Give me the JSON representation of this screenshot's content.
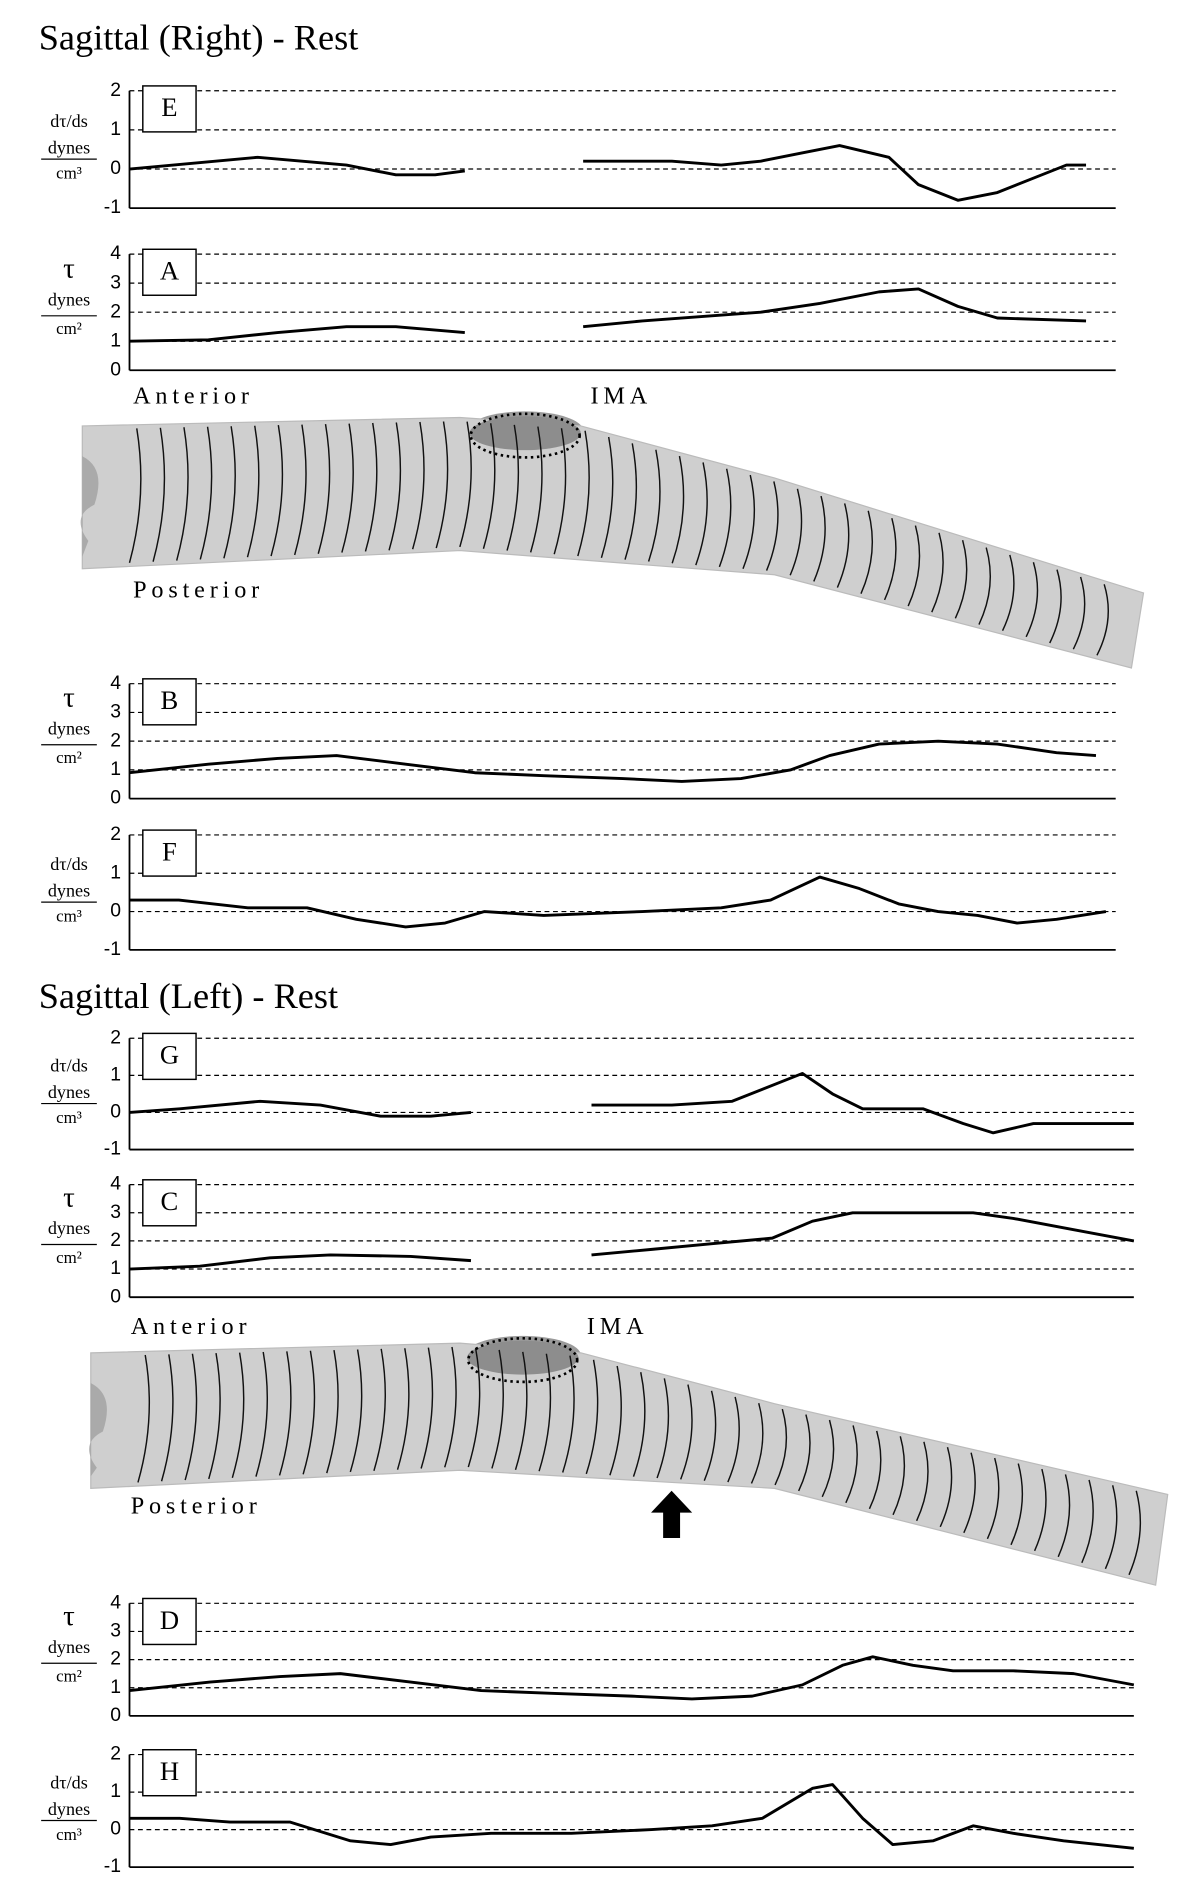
{
  "sections": [
    {
      "title": "Sagittal (Right) - Rest",
      "diagram": {
        "top_label": "Anterior",
        "ima_label": "IMA",
        "bottom_label": "Posterior"
      }
    },
    {
      "title": "Sagittal (Left) - Rest",
      "diagram": {
        "top_label": "Anterior",
        "ima_label": "IMA",
        "bottom_label": "Posterior"
      }
    }
  ],
  "chart_data": [
    {
      "type": "line",
      "label": "E",
      "ylabel": [
        "dτ/ds",
        "dynes",
        "cm³"
      ],
      "color": "#000000",
      "grid": true,
      "xlim": [
        0,
        100
      ],
      "ylim": [
        -1,
        2
      ],
      "yticks": [
        -1,
        0,
        1,
        2
      ],
      "x": [
        0,
        13,
        22,
        27,
        31,
        34,
        null,
        46,
        55,
        60,
        64,
        68,
        72,
        77,
        80,
        84,
        88,
        92,
        95,
        97
      ],
      "values": [
        0,
        0.3,
        0.1,
        -0.15,
        -0.15,
        -0.05,
        null,
        0.2,
        0.2,
        0.1,
        0.2,
        0.4,
        0.6,
        0.3,
        -0.4,
        -0.8,
        -0.6,
        -0.2,
        0.1,
        0.1
      ]
    },
    {
      "type": "line",
      "label": "A",
      "ylabel": [
        "τ",
        "dynes",
        "cm²"
      ],
      "color": "#000000",
      "grid": true,
      "xlim": [
        0,
        100
      ],
      "ylim": [
        0,
        4
      ],
      "yticks": [
        0,
        1,
        2,
        3,
        4
      ],
      "x": [
        0,
        8,
        15,
        22,
        27,
        34,
        null,
        46,
        52,
        58,
        64,
        70,
        76,
        80,
        84,
        88,
        97
      ],
      "values": [
        1,
        1.05,
        1.3,
        1.5,
        1.5,
        1.3,
        null,
        1.5,
        1.7,
        1.85,
        2.0,
        2.3,
        2.7,
        2.8,
        2.2,
        1.8,
        1.7
      ]
    },
    {
      "type": "line",
      "label": "B",
      "ylabel": [
        "τ",
        "dynes",
        "cm²"
      ],
      "color": "#000000",
      "grid": true,
      "xlim": [
        0,
        100
      ],
      "ylim": [
        0,
        4
      ],
      "yticks": [
        0,
        1,
        2,
        3,
        4
      ],
      "x": [
        0,
        8,
        15,
        21,
        28,
        35,
        42,
        50,
        56,
        62,
        67,
        71,
        76,
        82,
        88,
        94,
        98
      ],
      "values": [
        0.9,
        1.2,
        1.4,
        1.5,
        1.2,
        0.9,
        0.8,
        0.7,
        0.6,
        0.7,
        1.0,
        1.5,
        1.9,
        2.0,
        1.9,
        1.6,
        1.5
      ]
    },
    {
      "type": "line",
      "label": "F",
      "ylabel": [
        "dτ/ds",
        "dynes",
        "cm³"
      ],
      "color": "#000000",
      "grid": true,
      "xlim": [
        0,
        100
      ],
      "ylim": [
        -1,
        2
      ],
      "yticks": [
        -1,
        0,
        1,
        2
      ],
      "x": [
        0,
        5,
        12,
        18,
        23,
        28,
        32,
        36,
        42,
        52,
        60,
        65,
        70,
        74,
        78,
        82,
        86,
        90,
        94,
        99
      ],
      "values": [
        0.3,
        0.3,
        0.1,
        0.1,
        -0.2,
        -0.4,
        -0.3,
        0,
        -0.1,
        0,
        0.1,
        0.3,
        0.9,
        0.6,
        0.2,
        0,
        -0.1,
        -0.3,
        -0.2,
        0
      ]
    },
    {
      "type": "line",
      "label": "G",
      "ylabel": [
        "dτ/ds",
        "dynes",
        "cm³"
      ],
      "color": "#000000",
      "grid": true,
      "xlim": [
        0,
        100
      ],
      "ylim": [
        -1,
        2
      ],
      "yticks": [
        -1,
        0,
        1,
        2
      ],
      "x": [
        0,
        5,
        13,
        19,
        25,
        30,
        34,
        null,
        46,
        54,
        60,
        67,
        70,
        73,
        79,
        83,
        86,
        90,
        100
      ],
      "values": [
        0,
        0.1,
        0.3,
        0.2,
        -0.1,
        -0.1,
        0,
        null,
        0.2,
        0.2,
        0.3,
        1.05,
        0.5,
        0.1,
        0.1,
        -0.3,
        -0.55,
        -0.3,
        -0.3
      ]
    },
    {
      "type": "line",
      "label": "C",
      "ylabel": [
        "τ",
        "dynes",
        "cm²"
      ],
      "color": "#000000",
      "grid": true,
      "xlim": [
        0,
        100
      ],
      "ylim": [
        0,
        4
      ],
      "yticks": [
        0,
        1,
        2,
        3,
        4
      ],
      "x": [
        0,
        7,
        14,
        20,
        28,
        34,
        null,
        46,
        52,
        58,
        64,
        68,
        72,
        80,
        84,
        88,
        94,
        100
      ],
      "values": [
        1,
        1.1,
        1.4,
        1.5,
        1.45,
        1.3,
        null,
        1.5,
        1.7,
        1.9,
        2.1,
        2.7,
        3.0,
        3.0,
        3.0,
        2.8,
        2.4,
        2.0
      ]
    },
    {
      "type": "line",
      "label": "D",
      "ylabel": [
        "τ",
        "dynes",
        "cm²"
      ],
      "color": "#000000",
      "grid": true,
      "xlim": [
        0,
        100
      ],
      "ylim": [
        0,
        4
      ],
      "yticks": [
        0,
        1,
        2,
        3,
        4
      ],
      "x": [
        0,
        8,
        15,
        21,
        28,
        35,
        42,
        50,
        56,
        62,
        67,
        71,
        74,
        78,
        82,
        88,
        94,
        100
      ],
      "values": [
        0.9,
        1.2,
        1.4,
        1.5,
        1.2,
        0.9,
        0.8,
        0.7,
        0.6,
        0.7,
        1.1,
        1.8,
        2.1,
        1.8,
        1.6,
        1.6,
        1.5,
        1.1
      ]
    },
    {
      "type": "line",
      "label": "H",
      "ylabel": [
        "dτ/ds",
        "dynes",
        "cm³"
      ],
      "color": "#000000",
      "grid": true,
      "xlim": [
        0,
        100
      ],
      "ylim": [
        -1,
        2
      ],
      "yticks": [
        -1,
        0,
        1,
        2
      ],
      "x": [
        0,
        5,
        10,
        16,
        22,
        26,
        30,
        36,
        44,
        52,
        58,
        63,
        68,
        70,
        73,
        76,
        80,
        84,
        88,
        93,
        100
      ],
      "values": [
        0.3,
        0.3,
        0.2,
        0.2,
        -0.3,
        -0.4,
        -0.2,
        -0.1,
        -0.1,
        0,
        0.1,
        0.3,
        1.1,
        1.2,
        0.3,
        -0.4,
        -0.3,
        0.1,
        -0.1,
        -0.3,
        -0.5
      ]
    }
  ]
}
